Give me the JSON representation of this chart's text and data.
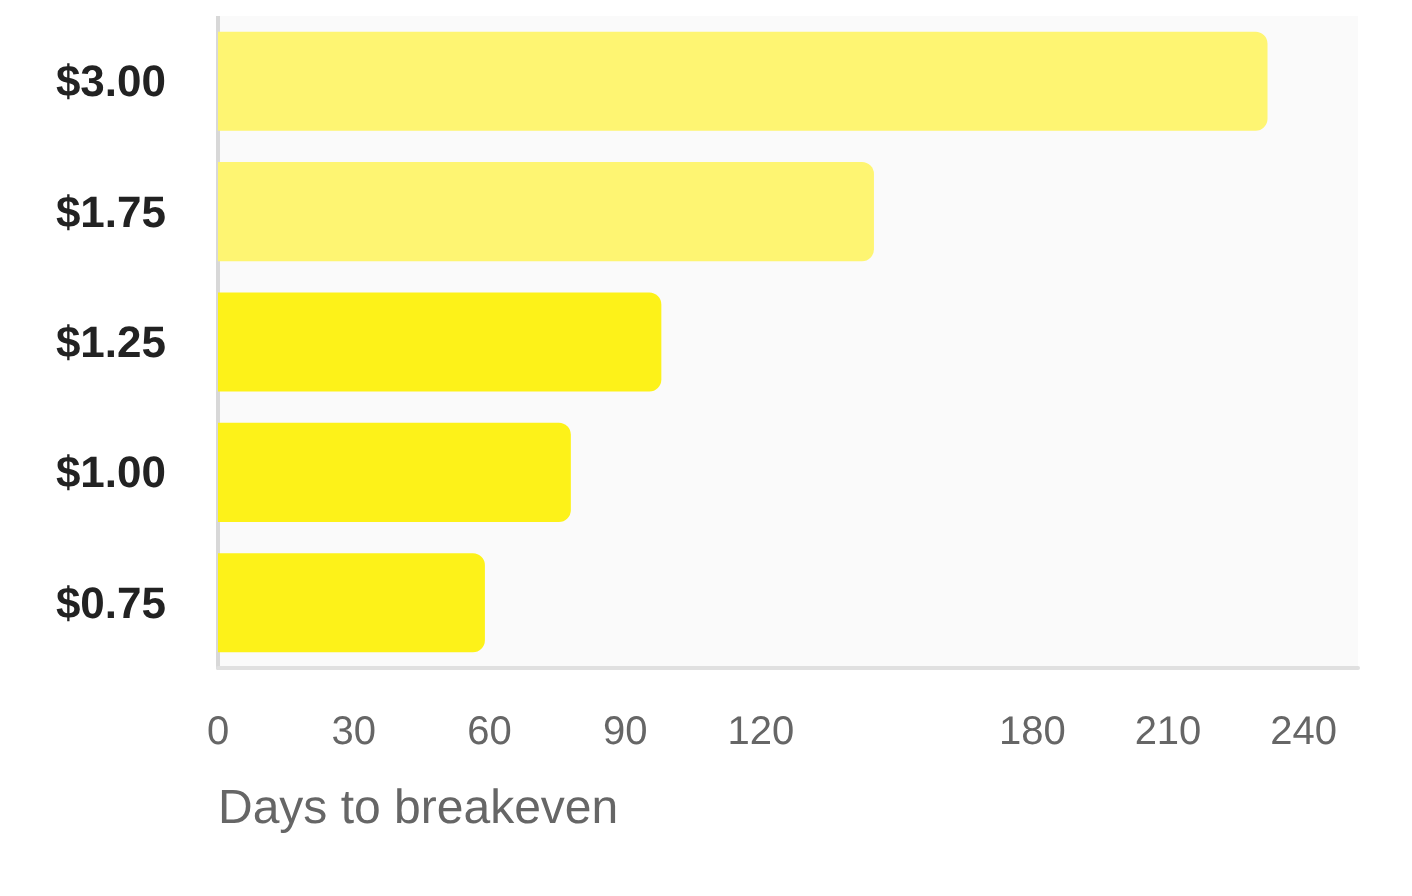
{
  "chart_data": {
    "type": "bar",
    "orientation": "horizontal",
    "xlabel": "Days to breakeven",
    "categories": [
      "$3.00",
      "$1.75",
      "$1.25",
      "$1.00",
      "$0.75"
    ],
    "values": [
      232,
      145,
      98,
      78,
      59
    ],
    "colors": [
      "#fef572",
      "#fef572",
      "#fdf219",
      "#fdf219",
      "#fdf219"
    ],
    "xlim": [
      0,
      252
    ],
    "xticks": [
      0,
      30,
      60,
      90,
      120,
      180,
      210,
      240
    ],
    "grid": false
  }
}
